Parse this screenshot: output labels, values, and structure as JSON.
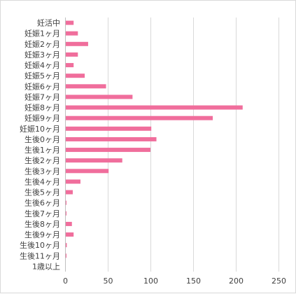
{
  "chart_data": {
    "type": "bar",
    "orientation": "horizontal",
    "categories": [
      "妊活中",
      "妊娠1ヶ月",
      "妊娠2ヶ月",
      "妊娠3ヶ月",
      "妊娠4ヶ月",
      "妊娠5ヶ月",
      "妊娠6ヶ月",
      "妊娠7ヶ月",
      "妊娠8ヶ月",
      "妊娠9ヶ月",
      "妊娠10ヶ月",
      "生後0ヶ月",
      "生後1ヶ月",
      "生後2ヶ月",
      "生後3ヶ月",
      "生後4ヶ月",
      "生後5ヶ月",
      "生後6ヶ月",
      "生後7ヶ月",
      "生後8ヶ月",
      "生後9ヶ月",
      "生後10ヶ月",
      "生後11ヶ月",
      "1歳以上"
    ],
    "values": [
      10,
      15,
      27,
      15,
      10,
      23,
      48,
      79,
      208,
      173,
      101,
      107,
      100,
      67,
      51,
      18,
      9,
      1,
      1,
      8,
      10,
      2,
      1,
      0
    ],
    "xlim": [
      0,
      250
    ],
    "xticks": [
      "0",
      "50",
      "100",
      "150",
      "200",
      "250"
    ],
    "grid": true,
    "bar_color": "#f06e9c",
    "grid_color": "#d9d9d9",
    "title": "",
    "xlabel": "",
    "ylabel": ""
  }
}
